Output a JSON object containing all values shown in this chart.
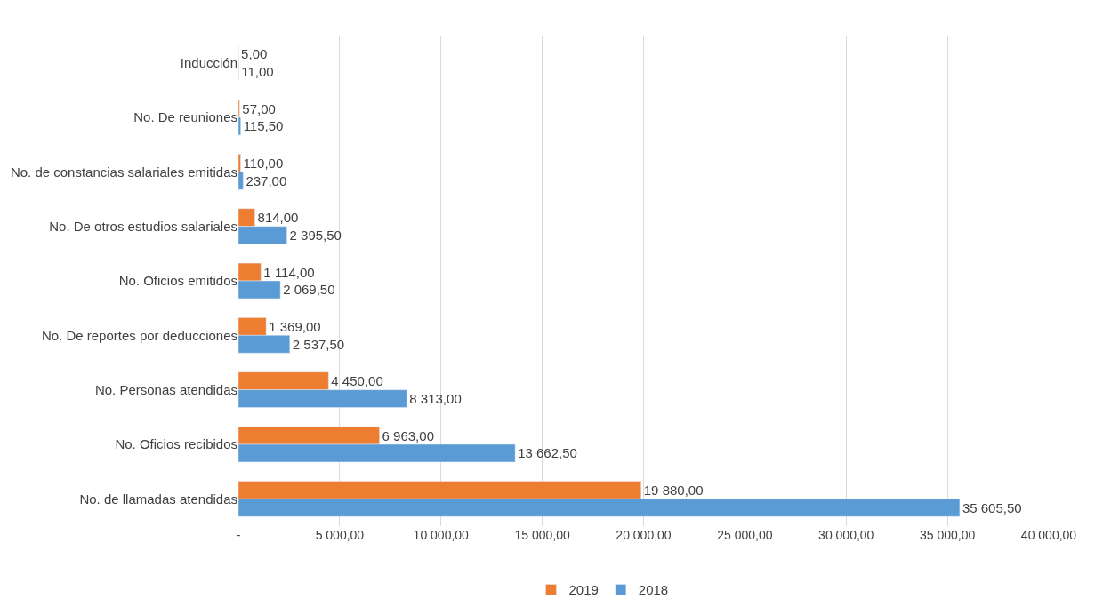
{
  "chart_data": {
    "type": "bar",
    "orientation": "horizontal",
    "categories": [
      "Inducción",
      "No. De reuniones",
      "No. de constancias salariales emitidas",
      "No. De otros estudios salariales",
      "No. Oficios emitidos",
      "No. De reportes por deducciones",
      "No. Personas atendidas",
      "No. Oficios recibidos",
      "No. de llamadas atendidas"
    ],
    "series": [
      {
        "name": "2019",
        "color": "#ed7d31",
        "values": [
          5,
          57,
          110,
          814,
          1114,
          1369,
          4450,
          6963,
          19880
        ],
        "value_labels": [
          "5,00",
          "57,00",
          "110,00",
          "814,00",
          "1 114,00",
          "1 369,00",
          "4 450,00",
          "6 963,00",
          "19 880,00"
        ]
      },
      {
        "name": "2018",
        "color": "#5b9bd5",
        "values": [
          11,
          115.5,
          237,
          2395.5,
          2069.5,
          2537.5,
          8313,
          13662.5,
          35605.5
        ],
        "value_labels": [
          "11,00",
          "115,50",
          "237,00",
          "2 395,50",
          "2 069,50",
          "2 537,50",
          "8 313,00",
          "13 662,50",
          "35 605,50"
        ]
      }
    ],
    "xlim": [
      0,
      40000
    ],
    "xticks": [
      {
        "value": 0,
        "label": "-"
      },
      {
        "value": 5000,
        "label": "5 000,00"
      },
      {
        "value": 10000,
        "label": "10 000,00"
      },
      {
        "value": 15000,
        "label": "15 000,00"
      },
      {
        "value": 20000,
        "label": "20 000,00"
      },
      {
        "value": 25000,
        "label": "25 000,00"
      },
      {
        "value": 30000,
        "label": "30 000,00"
      },
      {
        "value": 35000,
        "label": "35 000,00"
      },
      {
        "value": 40000,
        "label": "40 000,00"
      }
    ],
    "grid": "x",
    "legend": "bottom"
  }
}
